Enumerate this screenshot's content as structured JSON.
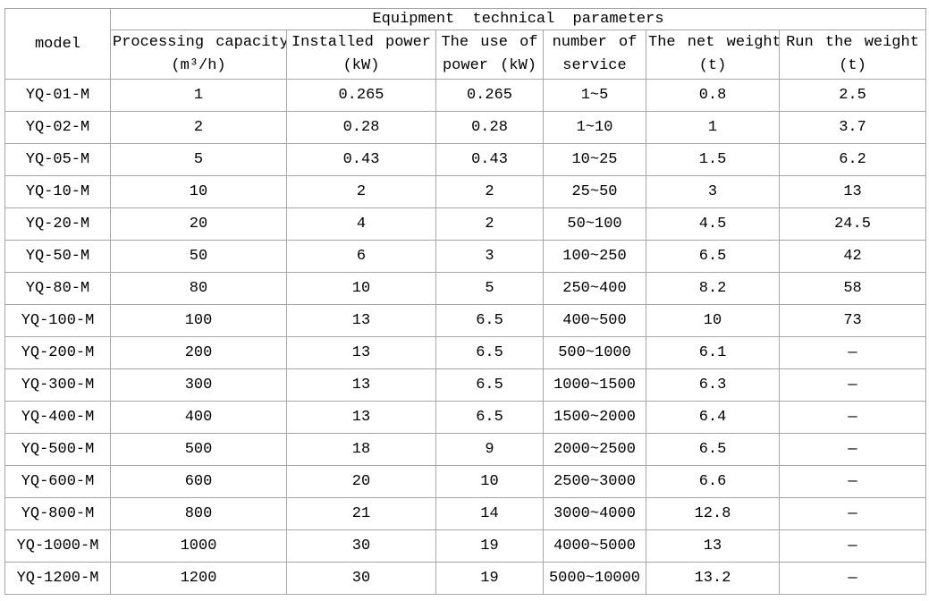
{
  "table": {
    "title": "Equipment technical parameters",
    "model_header": "model",
    "column_headers": [
      {
        "line1": "Processing capacity",
        "line2": "(m³/h)"
      },
      {
        "line1": "Installed power",
        "line2": "(kW)"
      },
      {
        "line1": "The use of",
        "line2": "power (kW)"
      },
      {
        "line1": "number of",
        "line2": "service"
      },
      {
        "line1": "The net weight",
        "line2": "(t)"
      },
      {
        "line1": "Run the weight",
        "line2": "(t)"
      }
    ],
    "rows": [
      {
        "cells": [
          "YQ-01-M",
          "1",
          "0.265",
          "0.265",
          "1~5",
          "0.8",
          "2.5"
        ]
      },
      {
        "cells": [
          "YQ-02-M",
          "2",
          "0.28",
          "0.28",
          "1~10",
          "1",
          "3.7"
        ]
      },
      {
        "cells": [
          "YQ-05-M",
          "5",
          "0.43",
          "0.43",
          "10~25",
          "1.5",
          "6.2"
        ]
      },
      {
        "cells": [
          "YQ-10-M",
          "10",
          "2",
          "2",
          "25~50",
          "3",
          "13"
        ]
      },
      {
        "cells": [
          "YQ-20-M",
          "20",
          "4",
          "2",
          "50~100",
          "4.5",
          "24.5"
        ]
      },
      {
        "cells": [
          "YQ-50-M",
          "50",
          "6",
          "3",
          "100~250",
          "6.5",
          "42"
        ]
      },
      {
        "cells": [
          "YQ-80-M",
          "80",
          "10",
          "5",
          "250~400",
          "8.2",
          "58"
        ]
      },
      {
        "cells": [
          "YQ-100-M",
          "100",
          "13",
          "6.5",
          "400~500",
          "10",
          "73"
        ]
      },
      {
        "cells": [
          "YQ-200-M",
          "200",
          "13",
          "6.5",
          "500~1000",
          "6.1",
          "—"
        ]
      },
      {
        "cells": [
          "YQ-300-M",
          "300",
          "13",
          "6.5",
          "1000~1500",
          "6.3",
          "—"
        ]
      },
      {
        "cells": [
          "YQ-400-M",
          "400",
          "13",
          "6.5",
          "1500~2000",
          "6.4",
          "—"
        ]
      },
      {
        "cells": [
          "YQ-500-M",
          "500",
          "18",
          "9",
          "2000~2500",
          "6.5",
          "—"
        ]
      },
      {
        "cells": [
          "YQ-600-M",
          "600",
          "20",
          "10",
          "2500~3000",
          "6.6",
          "—"
        ]
      },
      {
        "cells": [
          "YQ-800-M",
          "800",
          "21",
          "14",
          "3000~4000",
          "12.8",
          "—"
        ]
      },
      {
        "cells": [
          "YQ-1000-M",
          "1000",
          "30",
          "19",
          "4000~5000",
          "13",
          "—"
        ]
      },
      {
        "cells": [
          "YQ-1200-M",
          "1200",
          "30",
          "19",
          "5000~10000",
          "13.2",
          "—"
        ]
      }
    ],
    "colors": {
      "border": "#a6a6a6",
      "text": "#000000",
      "background": "#ffffff"
    }
  }
}
